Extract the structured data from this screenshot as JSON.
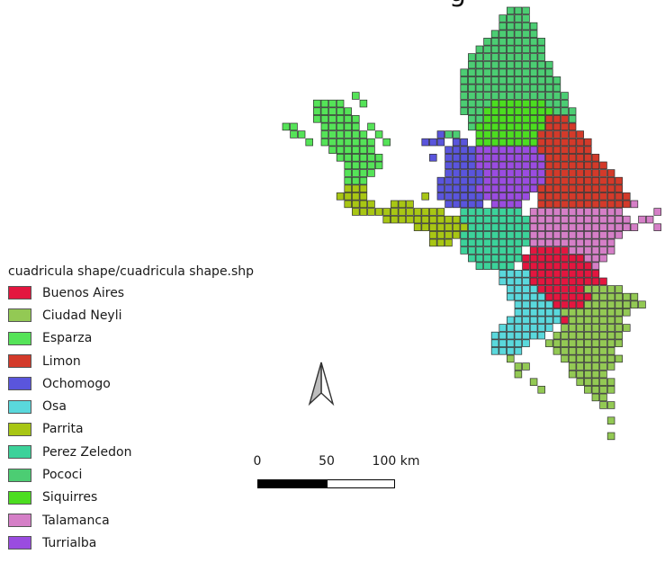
{
  "map": {
    "title_fragment": "g",
    "legend": {
      "title": "cuadricula shape/cuadricula shape.shp",
      "items": [
        {
          "label": "Buenos Aires",
          "color": "#e3163f"
        },
        {
          "label": "Ciudad Neyli",
          "color": "#93c954"
        },
        {
          "label": "Esparza",
          "color": "#55e358"
        },
        {
          "label": "Limon",
          "color": "#d33a2a"
        },
        {
          "label": "Ochomogo",
          "color": "#5a55dc"
        },
        {
          "label": "Osa",
          "color": "#5ad8dc"
        },
        {
          "label": "Parrita",
          "color": "#a8c614"
        },
        {
          "label": "Perez Zeledon",
          "color": "#3cd29a"
        },
        {
          "label": "Pococi",
          "color": "#4ccd73"
        },
        {
          "label": "Siquirres",
          "color": "#4cdd20"
        },
        {
          "label": "Talamanca",
          "color": "#d57fc7"
        },
        {
          "label": "Turrialba",
          "color": "#9a4ce0"
        }
      ]
    },
    "scale_bar": {
      "labels": [
        "0",
        "50",
        "100 km"
      ]
    },
    "north_arrow": "north-arrow-icon"
  }
}
